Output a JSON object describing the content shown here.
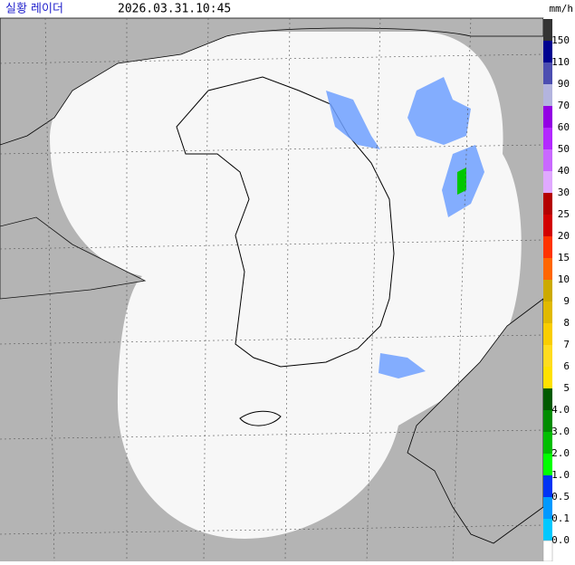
{
  "header": {
    "title": "실황 레이더",
    "timestamp": "2026.03.31.10:45",
    "unit": "mm/h"
  },
  "legend": {
    "items": [
      {
        "label": "150",
        "color": "#333333"
      },
      {
        "label": "110",
        "color": "#000390"
      },
      {
        "label": "90",
        "color": "#4c4eb1"
      },
      {
        "label": "70",
        "color": "#b3b4de"
      },
      {
        "label": "60",
        "color": "#9300e4"
      },
      {
        "label": "50",
        "color": "#b329ff"
      },
      {
        "label": "40",
        "color": "#c969ff"
      },
      {
        "label": "30",
        "color": "#e0a9ff"
      },
      {
        "label": "25",
        "color": "#b40000"
      },
      {
        "label": "20",
        "color": "#d20000"
      },
      {
        "label": "15",
        "color": "#ff3300"
      },
      {
        "label": "10",
        "color": "#ff6600"
      },
      {
        "label": "9",
        "color": "#ccaa00"
      },
      {
        "label": "8",
        "color": "#e0b900"
      },
      {
        "label": "7",
        "color": "#f9cd00"
      },
      {
        "label": "6",
        "color": "#ffdc1f"
      },
      {
        "label": "5",
        "color": "#ffe100"
      },
      {
        "label": "4.0",
        "color": "#005a00"
      },
      {
        "label": "3.0",
        "color": "#008c00"
      },
      {
        "label": "2.0",
        "color": "#00be00"
      },
      {
        "label": "1.0",
        "color": "#00ff00"
      },
      {
        "label": "0.5",
        "color": "#0033f5"
      },
      {
        "label": "0.1",
        "color": "#0099ff"
      },
      {
        "label": "0.0",
        "color": "#00c8ff"
      }
    ]
  }
}
